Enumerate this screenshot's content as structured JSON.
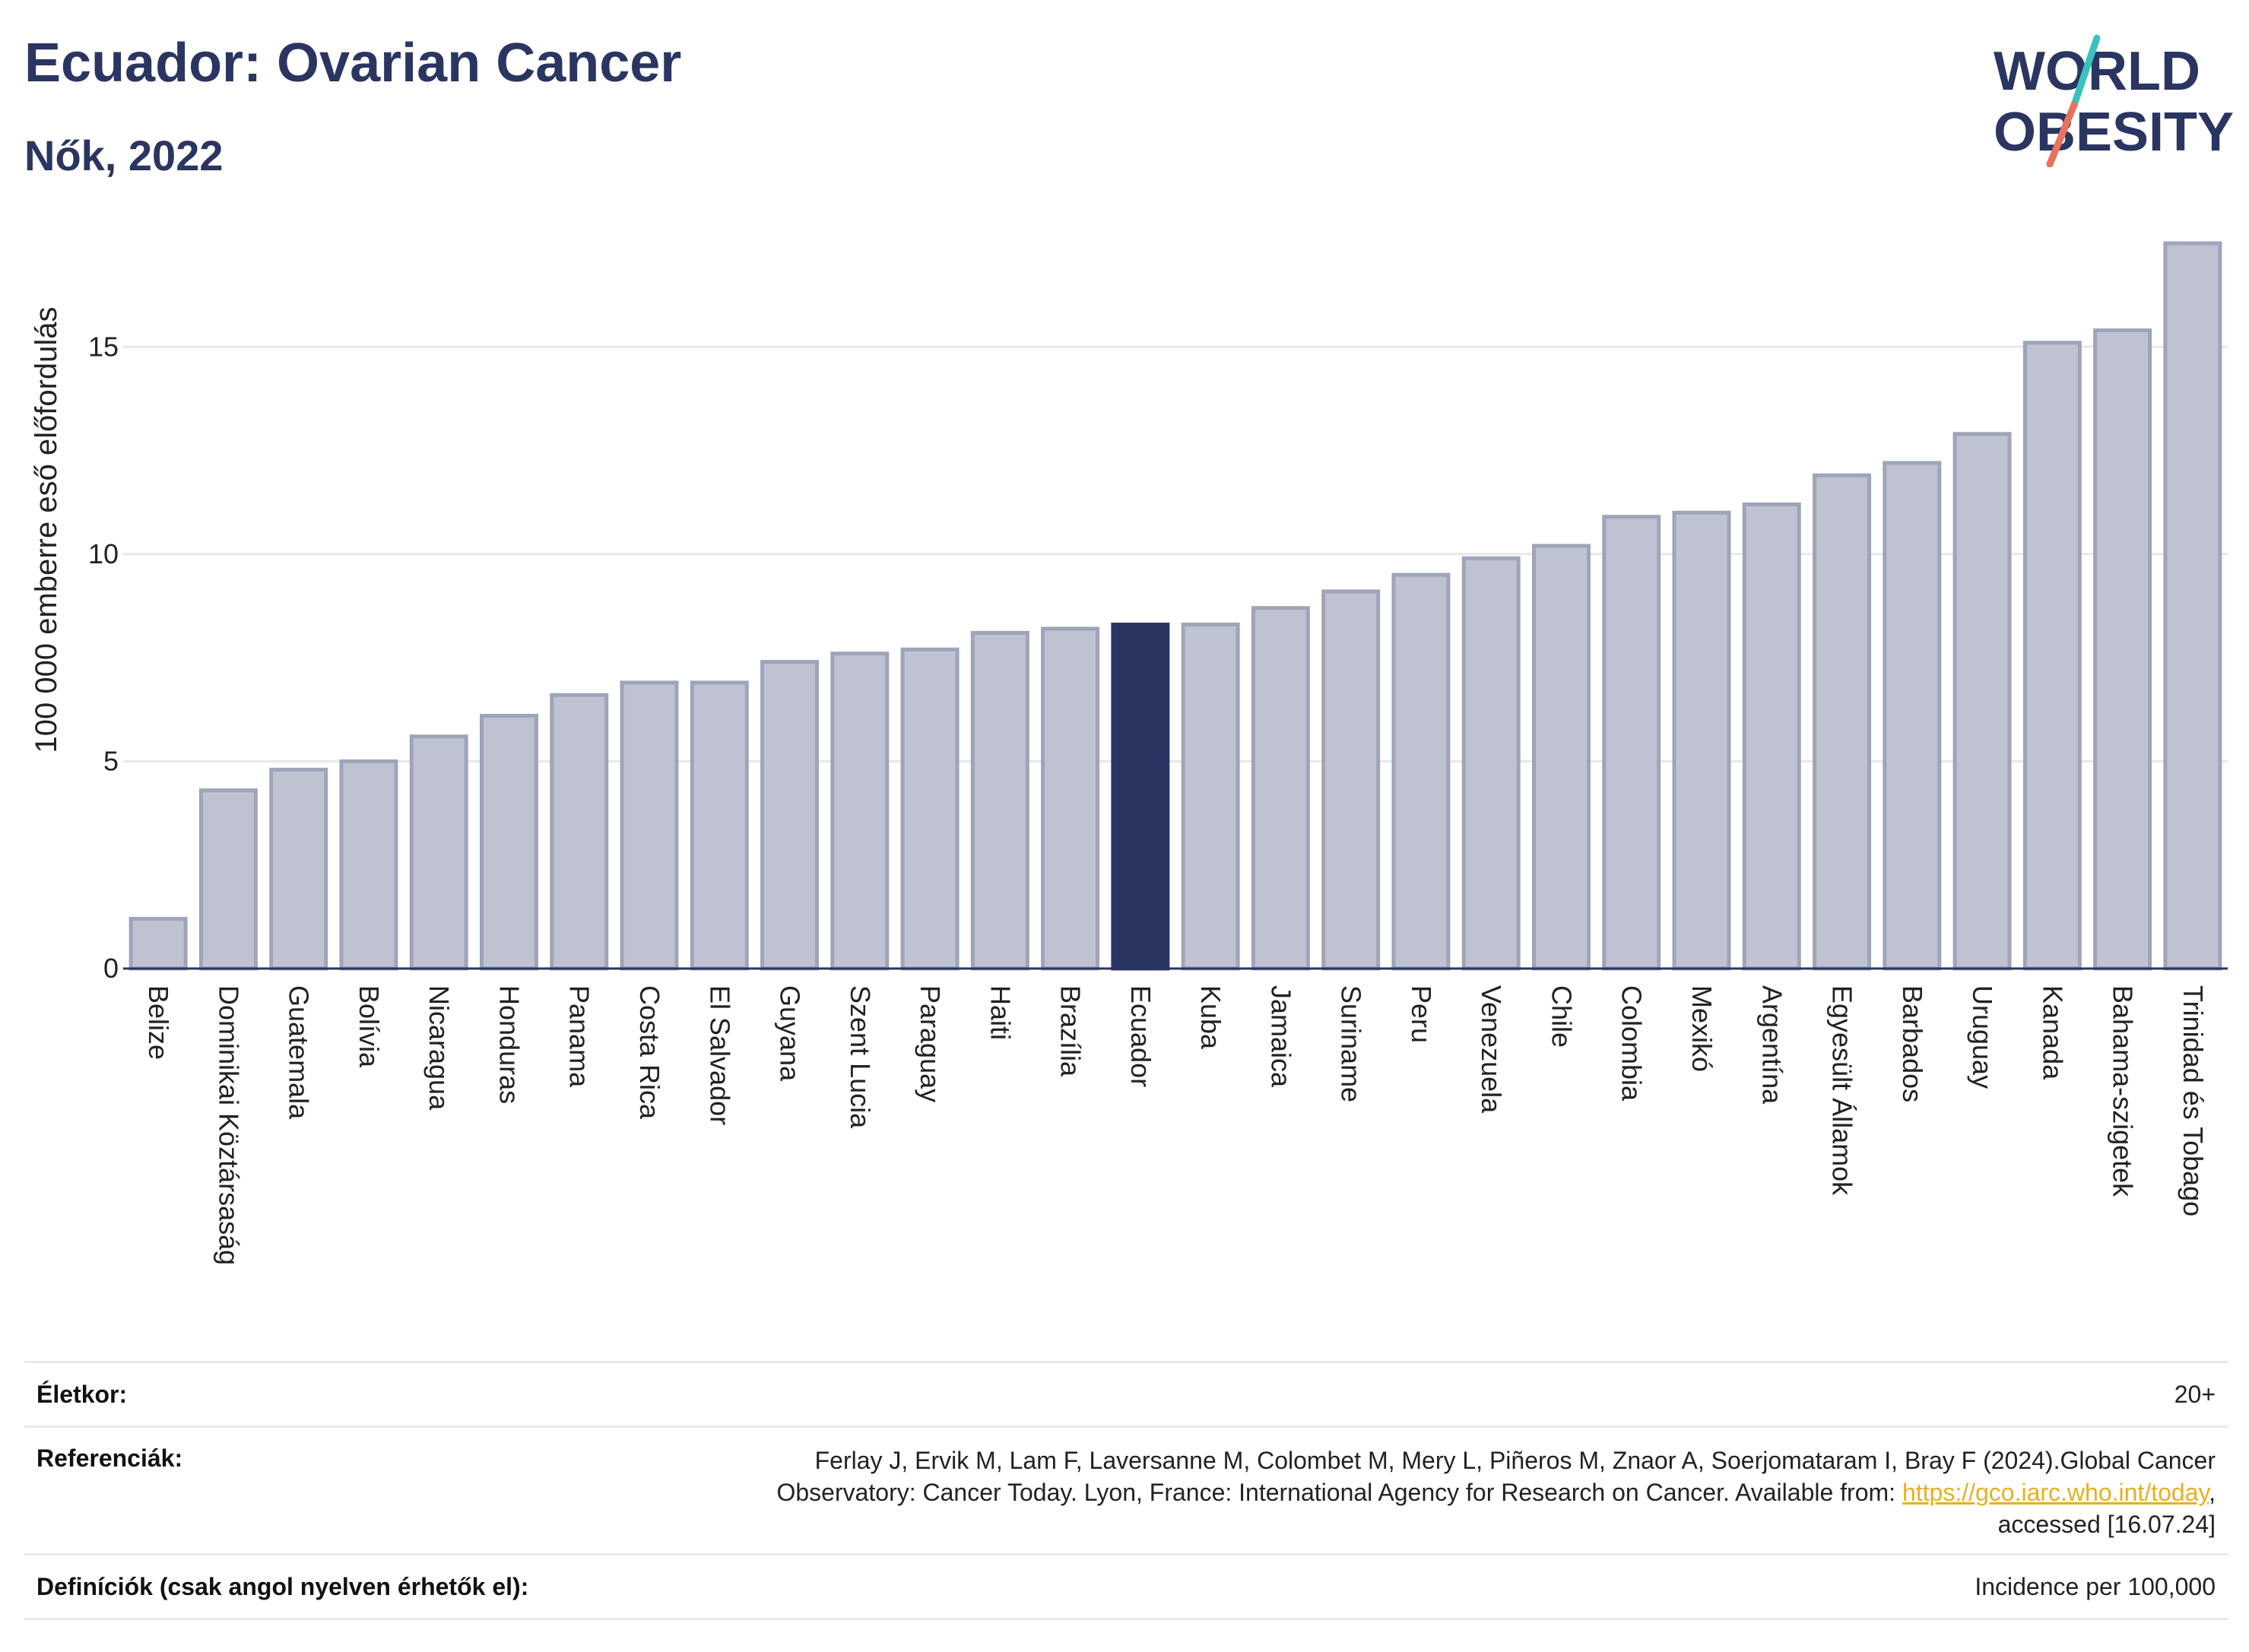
{
  "header": {
    "title": "Ecuador: Ovarian Cancer",
    "subtitle": "Nők, 2022"
  },
  "logo": {
    "line1": "WORLD",
    "line2": "OBESITY",
    "text_color": "#2a3561",
    "slash_colors": [
      "#3cc1c0",
      "#e8735a"
    ]
  },
  "colors": {
    "bar_default": "#bfc3d1",
    "bar_border": "#9ea4b9",
    "bar_highlight": "#2a3561",
    "grid": "#e8e8e8",
    "axis": "#2a3561"
  },
  "chart_data": {
    "type": "bar",
    "title": "Ecuador: Ovarian Cancer",
    "subtitle": "Nők, 2022",
    "ylabel": "100 000 emberre eső előfordulás",
    "xlabel": "",
    "ylim": [
      0,
      17.5
    ],
    "yticks": [
      0,
      5,
      10,
      15
    ],
    "grid": true,
    "highlight": "Ecuador",
    "categories": [
      "Belize",
      "Dominikai Köztársaság",
      "Guatemala",
      "Bolívia",
      "Nicaragua",
      "Honduras",
      "Panama",
      "Costa Rica",
      "El Salvador",
      "Guyana",
      "Szent Lucia",
      "Paraguay",
      "Haiti",
      "Brazília",
      "Ecuador",
      "Kuba",
      "Jamaica",
      "Suriname",
      "Peru",
      "Venezuela",
      "Chile",
      "Colombia",
      "Mexikó",
      "Argentína",
      "Egyesült Államok",
      "Barbados",
      "Uruguay",
      "Kanada",
      "Bahama-szigetek",
      "Trinidad és Tobago"
    ],
    "values": [
      1.2,
      4.3,
      4.8,
      5.0,
      5.6,
      6.1,
      6.6,
      6.9,
      6.9,
      7.4,
      7.6,
      7.7,
      8.1,
      8.2,
      8.3,
      8.3,
      8.7,
      9.1,
      9.5,
      9.9,
      10.2,
      10.9,
      11.0,
      11.2,
      11.9,
      12.2,
      12.9,
      15.1,
      15.4,
      17.5
    ]
  },
  "meta": {
    "age_label": "Életkor:",
    "age_value": "20+",
    "ref_label": "Referenciák:",
    "ref_line1": "Ferlay J, Ervik M, Lam F, Laversanne M, Colombet M, Mery L, Piñeros M, Znaor A, Soerjomataram I, Bray F (2024).Global Cancer",
    "ref_line2_pre": "Observatory: Cancer Today. Lyon, France: International Agency for Research on Cancer. Available from: ",
    "ref_link": "https://gco.iarc.who.int/today",
    "ref_line2_post": ",",
    "ref_line3": "accessed [16.07.24]",
    "def_label": "Definíciók (csak angol nyelven érhetők el):",
    "def_value": "Incidence per 100,000"
  }
}
